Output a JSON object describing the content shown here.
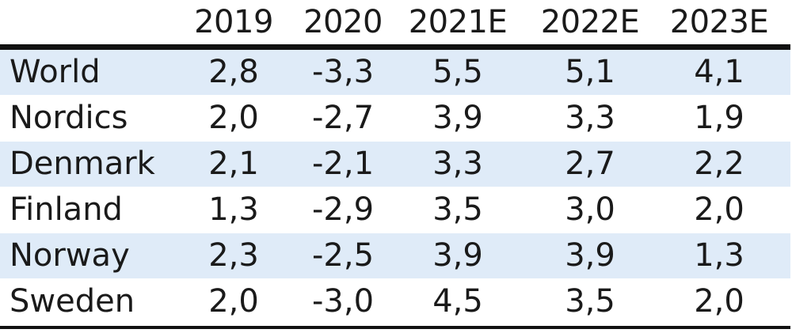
{
  "chart_data": {
    "type": "table",
    "columns": [
      "2019",
      "2020",
      "2021E",
      "2022E",
      "2023E"
    ],
    "rows": [
      {
        "label": "World",
        "values": [
          "2,8",
          "-3,3",
          "5,5",
          "5,1",
          "4,1"
        ]
      },
      {
        "label": "Nordics",
        "values": [
          "2,0",
          "-2,7",
          "3,9",
          "3,3",
          "1,9"
        ]
      },
      {
        "label": "Denmark",
        "values": [
          "2,1",
          "-2,1",
          "3,3",
          "2,7",
          "2,2"
        ]
      },
      {
        "label": "Finland",
        "values": [
          "1,3",
          "-2,9",
          "3,5",
          "3,0",
          "2,0"
        ]
      },
      {
        "label": "Norway",
        "values": [
          "2,3",
          "-2,5",
          "3,9",
          "3,9",
          "1,3"
        ]
      },
      {
        "label": "Sweden",
        "values": [
          "2,0",
          "-3,0",
          "4,5",
          "3,5",
          "2,0"
        ]
      }
    ],
    "row_shading_color": "#dfebf8",
    "rule_color": "#111111"
  }
}
